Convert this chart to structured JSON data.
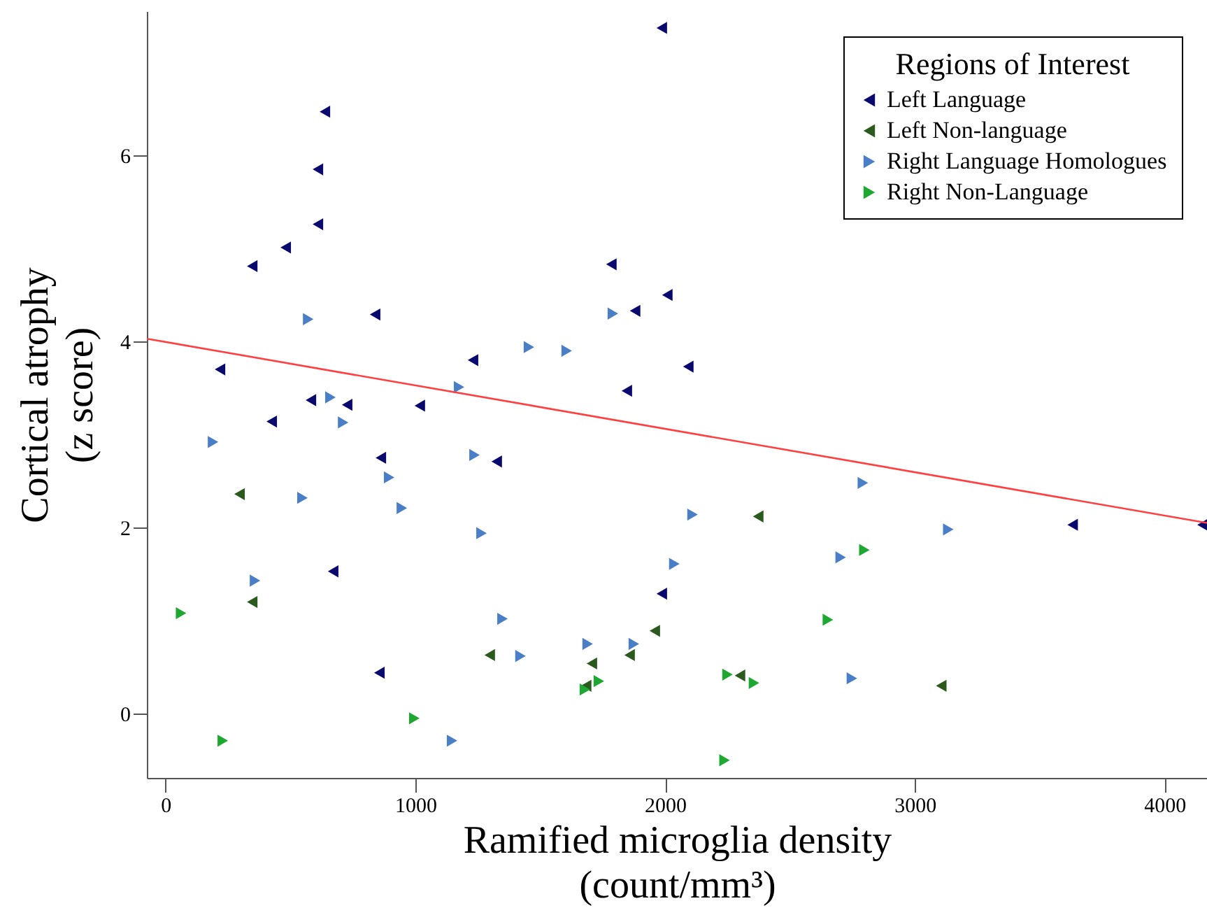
{
  "chart_data": {
    "type": "scatter",
    "xlabel": "Ramified microglia density\n(count/mm³)",
    "ylabel": "Cortical atrophy\n(z score)",
    "legend_title": "Regions of Interest",
    "legend": "top right",
    "grid": false,
    "xlim": [
      -75,
      4170
    ],
    "xticks": [
      0,
      1000,
      2000,
      3000,
      4000
    ],
    "ylim": [
      -0.69,
      7.55
    ],
    "yticks": [
      0,
      2,
      4,
      6
    ],
    "series": [
      {
        "name": "Left Language",
        "color": "#0a0a6e",
        "marker": "triangle-left",
        "x": [
          1987,
          638,
          610,
          610,
          481,
          347,
          1785,
          839,
          2009,
          1880,
          1231,
          2093,
          218,
          1847,
          727,
          582,
          1018,
          425,
          862,
          1326,
          671,
          1987,
          856,
          3632,
          4152
        ],
        "values": [
          7.37,
          6.47,
          5.85,
          5.26,
          5.01,
          4.81,
          4.83,
          4.29,
          4.5,
          4.33,
          3.8,
          3.73,
          3.7,
          3.47,
          3.32,
          3.37,
          3.31,
          3.14,
          2.75,
          2.71,
          1.53,
          1.29,
          0.44,
          2.03,
          2.03
        ]
      },
      {
        "name": "Left Non-language",
        "color": "#2a5a1e",
        "marker": "triangle-left",
        "x": [
          296,
          347,
          1298,
          1684,
          1707,
          1858,
          1959,
          2300,
          2373,
          3106
        ],
        "values": [
          2.36,
          1.2,
          0.63,
          0.3,
          0.54,
          0.63,
          0.89,
          0.41,
          2.12,
          0.3
        ]
      },
      {
        "name": "Right Language Homologues",
        "color": "#4a7fc8",
        "marker": "triangle-right",
        "x": [
          571,
          1791,
          1455,
          1606,
          1175,
          660,
          711,
          190,
          1237,
          895,
          548,
          946,
          2110,
          1265,
          2037,
          358,
          1349,
          1690,
          1875,
          1421,
          1147,
          2792,
          3134,
          2703,
          2748
        ],
        "values": [
          4.24,
          4.3,
          3.94,
          3.9,
          3.51,
          3.4,
          3.13,
          2.92,
          2.78,
          2.54,
          2.32,
          2.21,
          2.14,
          1.94,
          1.61,
          1.43,
          1.02,
          0.75,
          0.75,
          0.62,
          -0.29,
          2.48,
          1.98,
          1.68,
          0.38
        ]
      },
      {
        "name": "Right Non-Language",
        "color": "#1ea832",
        "marker": "triangle-right",
        "x": [
          62,
          229,
          996,
          1679,
          1735,
          2798,
          2652,
          2250,
          2356,
          2238
        ],
        "values": [
          1.08,
          -0.29,
          -0.05,
          0.26,
          0.35,
          1.76,
          1.01,
          0.42,
          0.33,
          -0.5
        ]
      },
      {
        "type": "line",
        "color": "#ff4040",
        "line_style": "solid",
        "x": [
          -75,
          4170
        ],
        "values": [
          4.03,
          2.05
        ]
      }
    ]
  }
}
